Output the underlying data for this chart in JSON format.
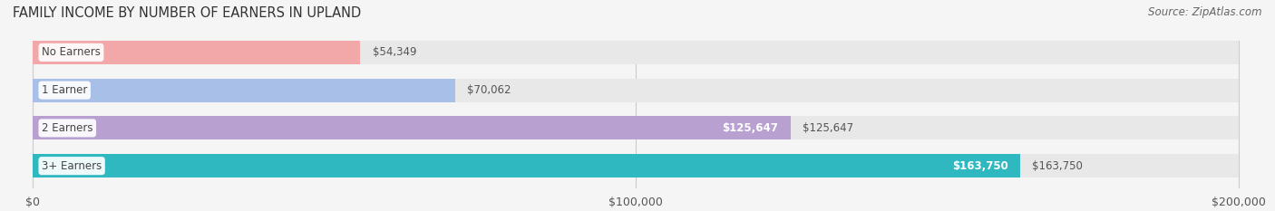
{
  "title": "FAMILY INCOME BY NUMBER OF EARNERS IN UPLAND",
  "source": "Source: ZipAtlas.com",
  "categories": [
    "No Earners",
    "1 Earner",
    "2 Earners",
    "3+ Earners"
  ],
  "values": [
    54349,
    70062,
    125647,
    163750
  ],
  "bar_colors": [
    "#f2a8a8",
    "#a8c0e8",
    "#b8a0d0",
    "#30b8c0"
  ],
  "bar_labels": [
    "$54,349",
    "$70,062",
    "$125,647",
    "$163,750"
  ],
  "xlim": [
    0,
    200000
  ],
  "xticks": [
    0,
    100000,
    200000
  ],
  "xtick_labels": [
    "$0",
    "$100,000",
    "$200,000"
  ],
  "background_color": "#f5f5f5",
  "bar_bg_color": "#e8e8e8",
  "title_fontsize": 10.5,
  "source_fontsize": 8.5,
  "bar_height": 0.62,
  "figsize": [
    14.06,
    2.33
  ],
  "dpi": 100
}
